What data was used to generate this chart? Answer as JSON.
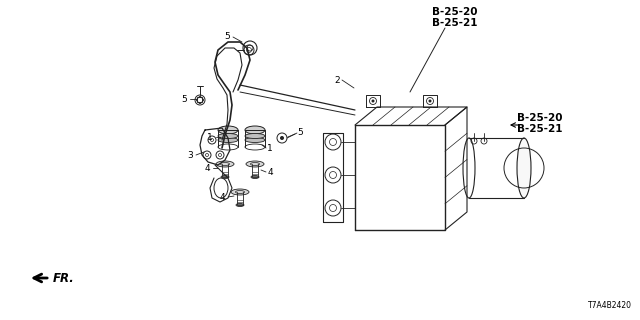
{
  "bg_color": "#ffffff",
  "fig_width": 6.4,
  "fig_height": 3.2,
  "dpi": 100,
  "labels": {
    "top_ref1": "B-25-20",
    "top_ref2": "B-25-21",
    "side_ref1": "B-25-20",
    "side_ref2": "B-25-21",
    "num_2": "2",
    "num_3": "3",
    "num_5a": "5",
    "num_5b": "5",
    "num_5c": "5",
    "num_1a": "1",
    "num_1b": "1",
    "num_4a": "4",
    "num_4b": "4",
    "num_4c": "4",
    "fr": "FR.",
    "code": "T7A4B2420"
  },
  "line_color": "#222222",
  "text_color": "#000000",
  "fs_small": 6.5,
  "fs_ref": 7.5,
  "fs_code": 5.5,
  "fs_fr": 8.5
}
